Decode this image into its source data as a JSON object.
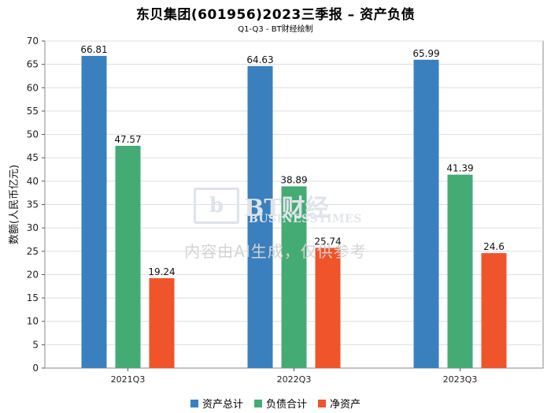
{
  "chart_data": {
    "type": "bar",
    "title": "东贝集团(601956)2023三季报 – 资产负债",
    "subtitle": "Q1-Q3 - BT财经绘制",
    "ylabel": "数额(人民币亿元)",
    "xlabel": "",
    "categories": [
      "2021Q3",
      "2022Q3",
      "2023Q3"
    ],
    "ylim": [
      0,
      70
    ],
    "yticks": [
      0,
      5,
      10,
      15,
      20,
      25,
      30,
      35,
      40,
      45,
      50,
      55,
      60,
      65,
      70
    ],
    "grid": true,
    "legend_position": "bottom",
    "series": [
      {
        "name": "资产总计",
        "color": "#3a80bf",
        "values": [
          66.81,
          64.63,
          65.99
        ],
        "labels": [
          "66.81",
          "64.63",
          "65.99"
        ]
      },
      {
        "name": "负债合计",
        "color": "#45ab75",
        "values": [
          47.57,
          38.89,
          41.39
        ],
        "labels": [
          "47.57",
          "38.89",
          "41.39"
        ]
      },
      {
        "name": "净资产",
        "color": "#f0542a",
        "values": [
          19.24,
          25.74,
          24.6
        ],
        "labels": [
          "19.24",
          "25.74",
          "24.6"
        ]
      }
    ]
  },
  "watermark": {
    "logo_text": "BT财经",
    "sub_text": "BUSINESSTIMES",
    "disclaimer": "内容由AI生成，仅供参考"
  }
}
